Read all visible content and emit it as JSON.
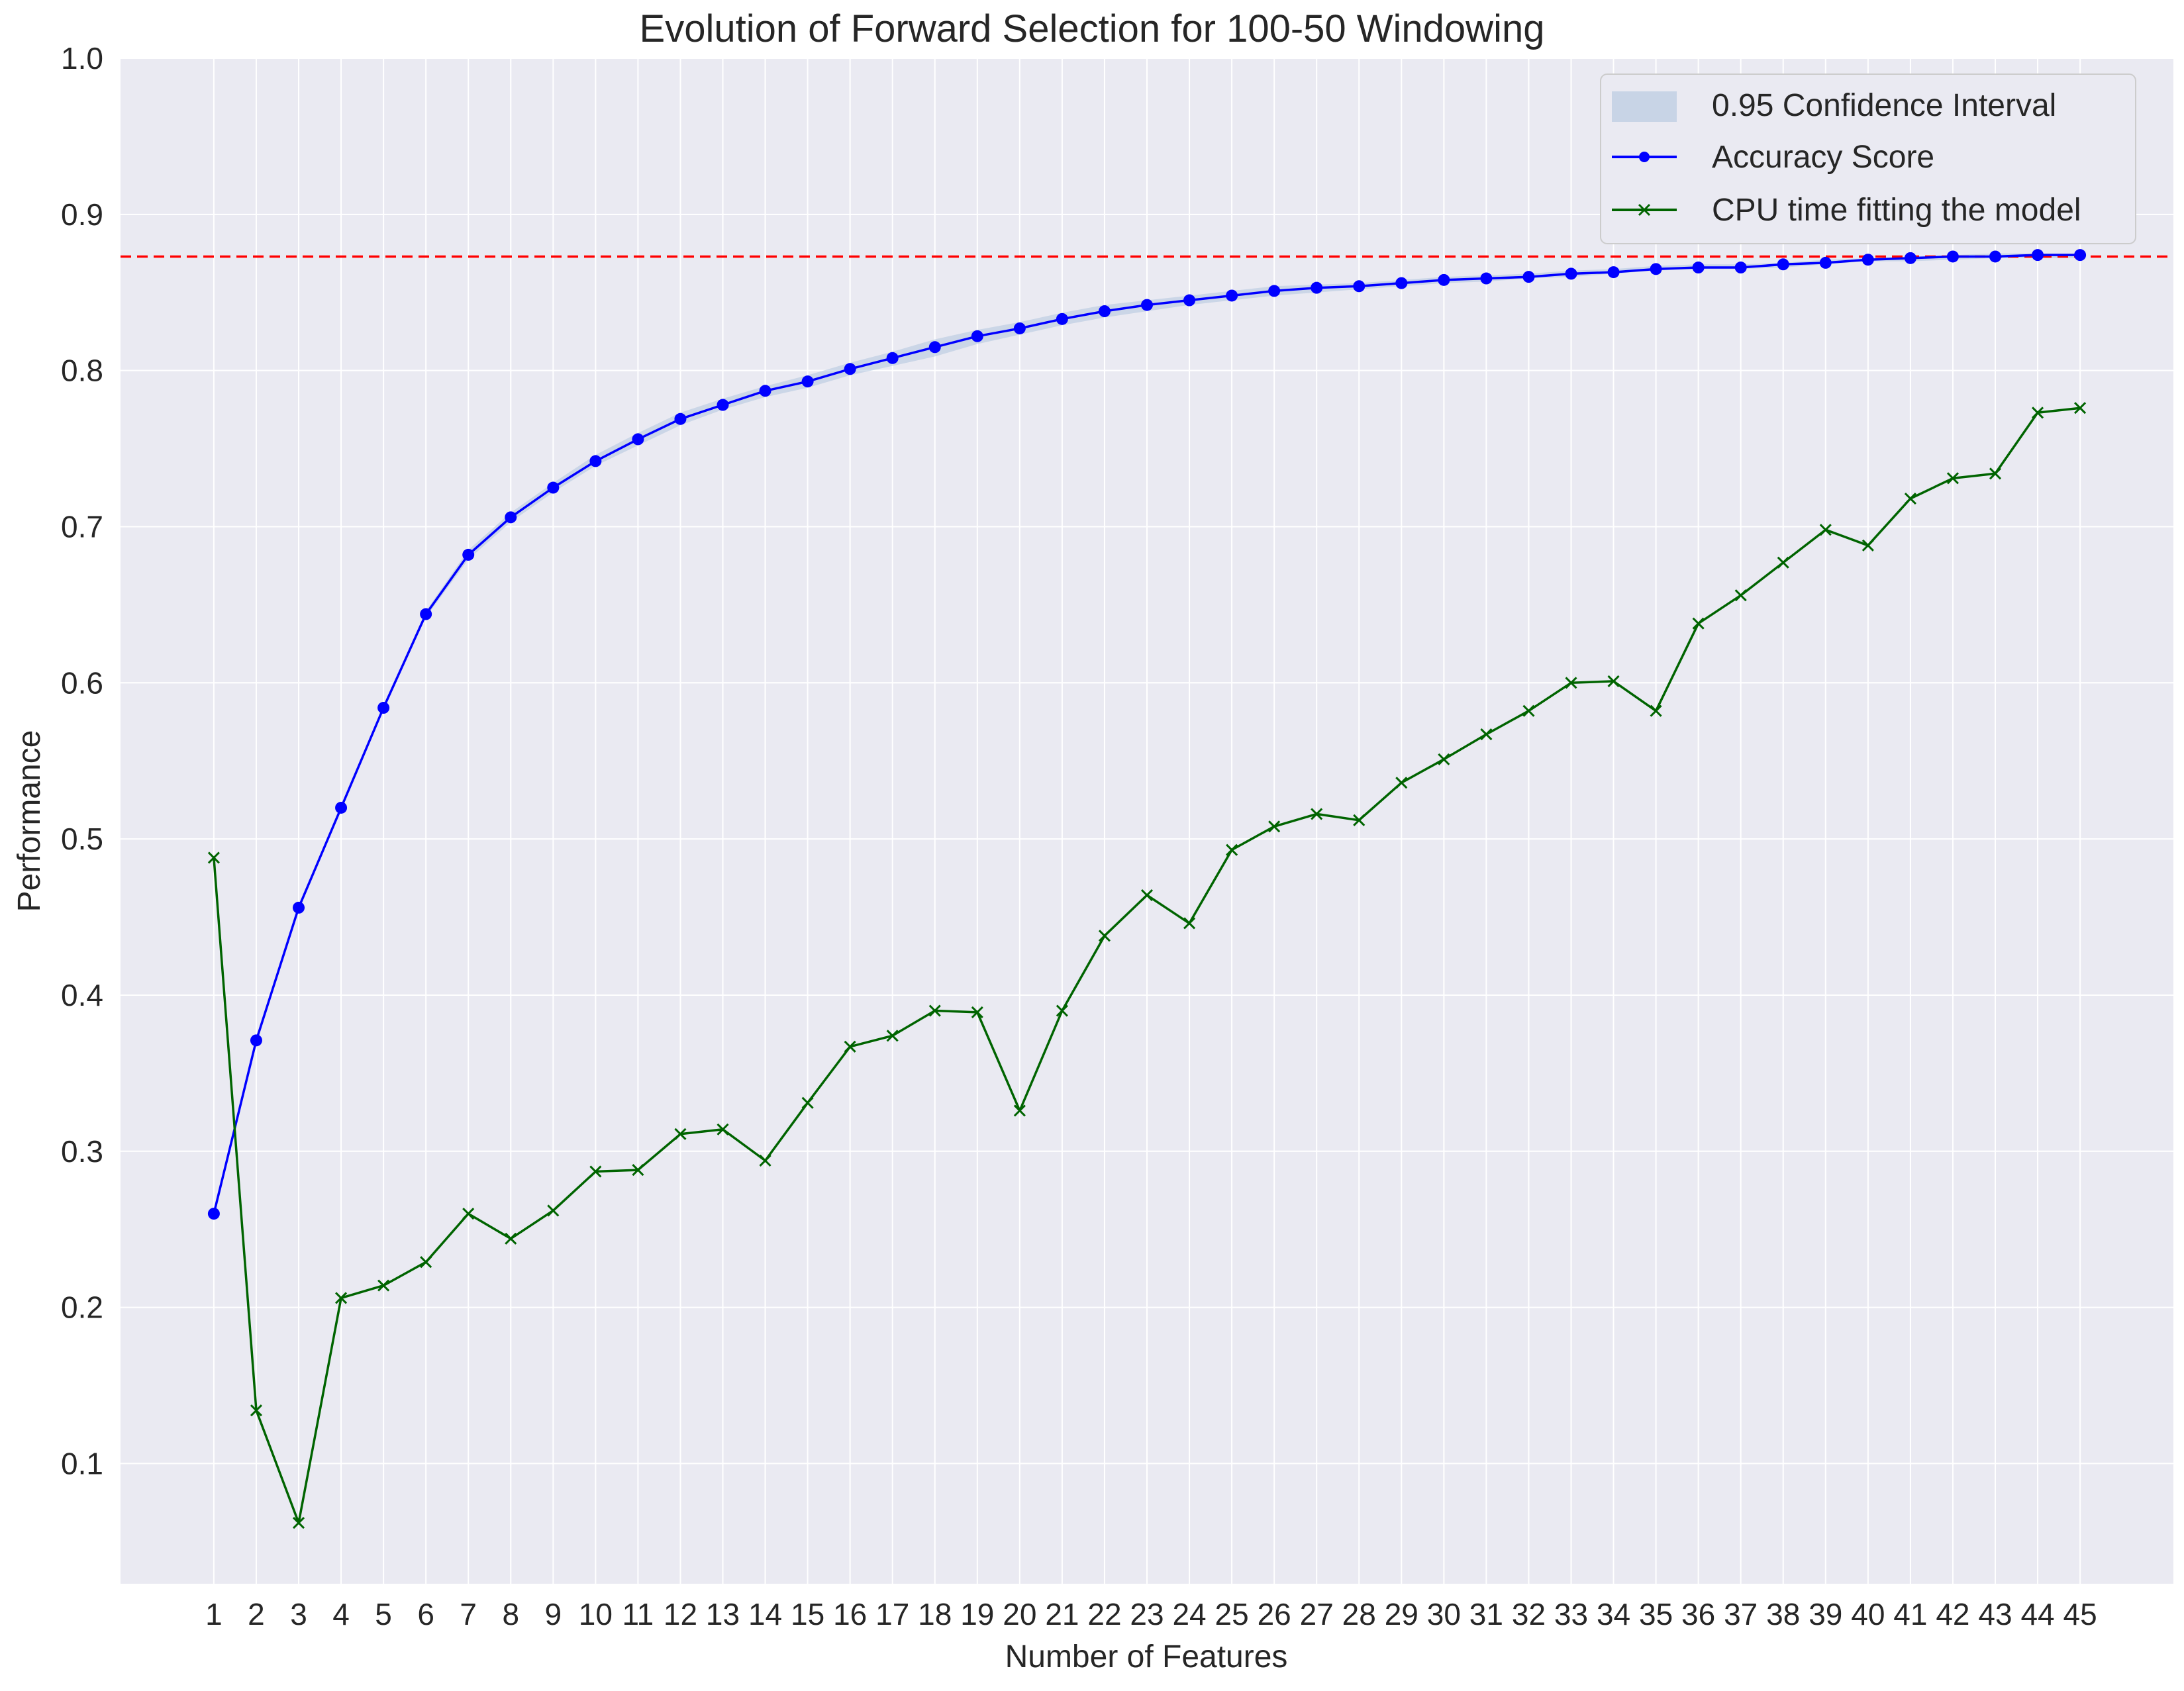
{
  "chart_data": {
    "type": "line",
    "title": "Evolution of Forward Selection for 100-50 Windowing",
    "xlabel": "Number of Features",
    "ylabel": "Performance",
    "xlim": [
      -1.2,
      47.2
    ],
    "ylim": [
      0.023,
      1.0
    ],
    "x": [
      1,
      2,
      3,
      4,
      5,
      6,
      7,
      8,
      9,
      10,
      11,
      12,
      13,
      14,
      15,
      16,
      17,
      18,
      19,
      20,
      21,
      22,
      23,
      24,
      25,
      26,
      27,
      28,
      29,
      30,
      31,
      32,
      33,
      34,
      35,
      36,
      37,
      38,
      39,
      40,
      41,
      42,
      43,
      44,
      45
    ],
    "xtick_labels": [
      "1",
      "2",
      "3",
      "4",
      "5",
      "6",
      "7",
      "8",
      "9",
      "10",
      "11",
      "12",
      "13",
      "14",
      "15",
      "16",
      "17",
      "18",
      "19",
      "20",
      "21",
      "22",
      "23",
      "24",
      "25",
      "26",
      "27",
      "28",
      "29",
      "30",
      "31",
      "32",
      "33",
      "34",
      "35",
      "36",
      "37",
      "38",
      "39",
      "40",
      "41",
      "42",
      "43",
      "44",
      "45"
    ],
    "yticks": [
      0.1,
      0.2,
      0.3,
      0.4,
      0.5,
      0.6,
      0.7,
      0.8,
      0.9,
      1.0
    ],
    "ytick_labels": [
      "0.1",
      "0.2",
      "0.3",
      "0.4",
      "0.5",
      "0.6",
      "0.7",
      "0.8",
      "0.9",
      "1.0"
    ],
    "grid": true,
    "legend_position": "top-right",
    "reference_line": {
      "y": 0.873,
      "style": "dashed",
      "color": "#ff0000"
    },
    "confidence_band": {
      "name": "0.95 Confidence Interval",
      "color": "#b0c4de",
      "lower": [
        0.259,
        0.37,
        0.455,
        0.519,
        0.583,
        0.642,
        0.679,
        0.703,
        0.722,
        0.739,
        0.752,
        0.765,
        0.775,
        0.783,
        0.789,
        0.797,
        0.803,
        0.809,
        0.817,
        0.823,
        0.829,
        0.834,
        0.838,
        0.842,
        0.845,
        0.848,
        0.85,
        0.852,
        0.854,
        0.856,
        0.857,
        0.859,
        0.86,
        0.862,
        0.864,
        0.865,
        0.865,
        0.866,
        0.868,
        0.87,
        0.87,
        0.871,
        0.872,
        0.872,
        0.872
      ],
      "upper": [
        0.261,
        0.372,
        0.457,
        0.521,
        0.585,
        0.646,
        0.685,
        0.709,
        0.728,
        0.746,
        0.76,
        0.773,
        0.782,
        0.79,
        0.797,
        0.805,
        0.812,
        0.82,
        0.826,
        0.831,
        0.837,
        0.842,
        0.845,
        0.848,
        0.851,
        0.854,
        0.855,
        0.856,
        0.858,
        0.86,
        0.861,
        0.862,
        0.864,
        0.865,
        0.867,
        0.868,
        0.868,
        0.869,
        0.871,
        0.872,
        0.873,
        0.874,
        0.875,
        0.875,
        0.875
      ]
    },
    "series": [
      {
        "name": "Accuracy Score",
        "color": "#0000ff",
        "marker": "circle",
        "values": [
          0.26,
          0.371,
          0.456,
          0.52,
          0.584,
          0.644,
          0.682,
          0.706,
          0.725,
          0.742,
          0.756,
          0.769,
          0.778,
          0.787,
          0.793,
          0.801,
          0.808,
          0.815,
          0.822,
          0.827,
          0.833,
          0.838,
          0.842,
          0.845,
          0.848,
          0.851,
          0.853,
          0.854,
          0.856,
          0.858,
          0.859,
          0.86,
          0.862,
          0.863,
          0.865,
          0.866,
          0.866,
          0.868,
          0.869,
          0.871,
          0.872,
          0.873,
          0.873,
          0.874,
          0.874
        ]
      },
      {
        "name": "CPU time fitting the model",
        "color": "#006400",
        "marker": "x",
        "values": [
          0.488,
          0.134,
          0.062,
          0.206,
          0.214,
          0.229,
          0.26,
          0.244,
          0.262,
          0.287,
          0.288,
          0.311,
          0.314,
          0.294,
          0.331,
          0.367,
          0.374,
          0.39,
          0.389,
          0.326,
          0.39,
          0.438,
          0.464,
          0.446,
          0.493,
          0.508,
          0.516,
          0.512,
          0.536,
          0.551,
          0.567,
          0.582,
          0.6,
          0.601,
          0.582,
          0.638,
          0.656,
          0.677,
          0.698,
          0.688,
          0.718,
          0.731,
          0.734,
          0.773,
          0.776
        ]
      }
    ]
  }
}
